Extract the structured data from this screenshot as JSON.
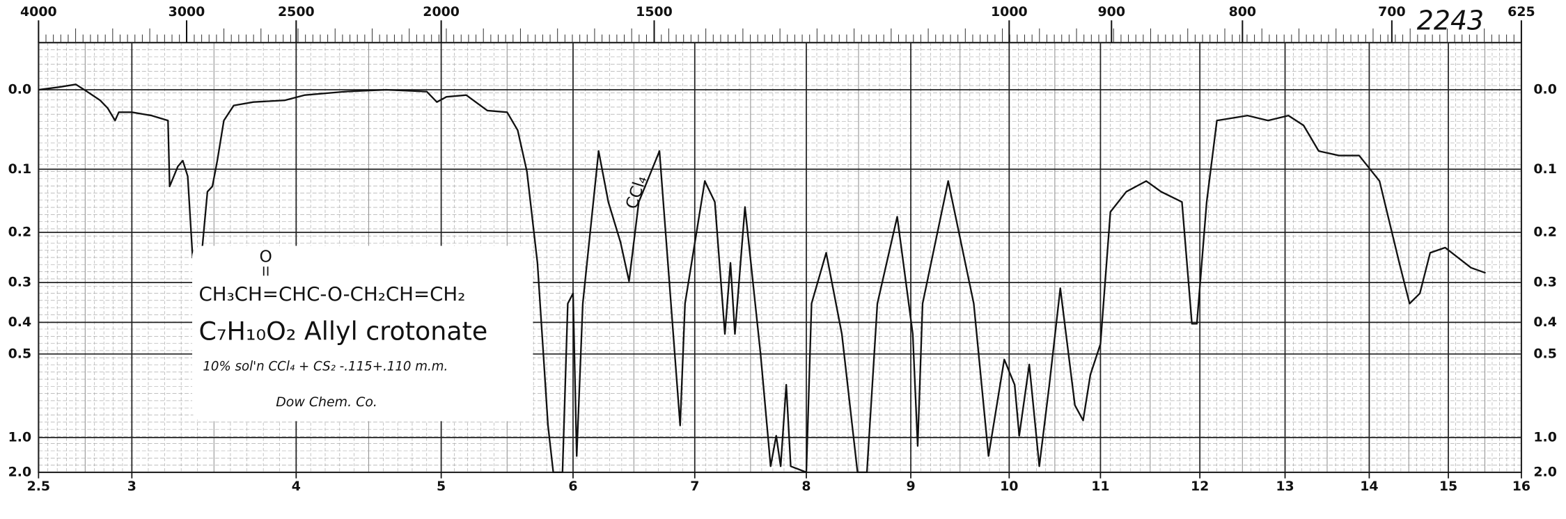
{
  "chart_data": {
    "type": "line",
    "color": "#111111",
    "grid": true,
    "yscale": "transmittance",
    "xlim": [
      2.5,
      16
    ],
    "xticks": [
      2.5,
      3,
      4,
      5,
      6,
      7,
      8,
      9,
      10,
      11,
      12,
      13,
      14,
      15,
      16
    ],
    "x2lim": [
      4000,
      625
    ],
    "x2ticks": [
      4000,
      3000,
      2500,
      2000,
      1500,
      1000,
      900,
      800,
      700,
      625
    ],
    "ylim": [
      -0.05,
      2
    ],
    "yticks": [
      {
        "value": 0,
        "label": "0.0"
      },
      0.1,
      0.2,
      0.3,
      0.4,
      0.5,
      {
        "value": 1,
        "label": "1.0"
      },
      {
        "value": 2,
        "label": "2.0"
      }
    ],
    "annotations": [
      "2243",
      "O",
      "CH₃CH=CHC-O-CH₂CH=CH₂",
      "C₇H₁₀O₂  Allyl crotonate",
      "10% sol'n CCl₄ + CS₂ -.115+.110 m.m.",
      "Dow Chem. Co.",
      "CCl₄"
    ],
    "x": [
      2.5,
      2.61,
      2.7,
      2.76,
      2.83,
      2.87,
      2.91,
      2.93,
      3.0,
      3.12,
      3.22,
      3.23,
      3.28,
      3.31,
      3.34,
      3.37,
      3.42,
      3.46,
      3.49,
      3.52,
      3.56,
      3.62,
      3.74,
      3.93,
      4.06,
      4.34,
      4.62,
      4.9,
      4.97,
      5.04,
      5.19,
      5.35,
      5.5,
      5.58,
      5.65,
      5.73,
      5.81,
      5.85,
      5.92,
      5.96,
      6.0,
      6.03,
      6.08,
      6.21,
      6.29,
      6.39,
      6.46,
      6.54,
      6.71,
      6.88,
      6.92,
      7.09,
      7.18,
      7.27,
      7.32,
      7.36,
      7.45,
      7.59,
      7.68,
      7.73,
      7.77,
      7.82,
      7.86,
      8.0,
      8.05,
      8.19,
      8.34,
      8.49,
      8.58,
      8.68,
      8.87,
      9.02,
      9.07,
      9.12,
      9.38,
      9.64,
      9.79,
      9.95,
      10.06,
      10.11,
      10.22,
      10.33,
      10.44,
      10.56,
      10.72,
      10.81,
      10.89,
      11.0,
      11.1,
      11.26,
      11.46,
      11.61,
      11.82,
      11.92,
      11.97,
      12.08,
      12.2,
      12.56,
      12.8,
      13.04,
      13.22,
      13.4,
      13.64,
      13.88,
      14.13,
      14.38,
      14.51,
      14.64,
      14.77,
      14.96,
      15.31,
      15.51
    ],
    "values": [
      0,
      -0.003,
      -0.006,
      0.002,
      0.012,
      0.021,
      0.036,
      0.026,
      0.026,
      0.03,
      0.036,
      0.125,
      0.096,
      0.088,
      0.11,
      0.248,
      0.258,
      0.133,
      0.125,
      0.088,
      0.036,
      0.018,
      0.014,
      0.012,
      0.006,
      0.002,
      0,
      0.002,
      0.014,
      0.008,
      0.006,
      0.024,
      0.026,
      0.048,
      0.103,
      0.258,
      0.882,
      2.0,
      2.0,
      0.35,
      0.325,
      1.283,
      0.35,
      0.075,
      0.149,
      0.218,
      0.297,
      0.149,
      0.075,
      0.882,
      0.35,
      0.117,
      0.149,
      0.434,
      0.258,
      0.434,
      0.157,
      0.501,
      1.59,
      0.98,
      1.59,
      0.626,
      1.59,
      2.0,
      0.35,
      0.238,
      0.434,
      2.0,
      2.0,
      0.35,
      0.173,
      0.434,
      1.106,
      0.35,
      0.117,
      0.35,
      1.283,
      0.52,
      0.626,
      0.98,
      0.539,
      1.59,
      0.626,
      0.313,
      0.736,
      0.841,
      0.58,
      0.466,
      0.165,
      0.133,
      0.117,
      0.133,
      0.149,
      0.404,
      0.404,
      0.149,
      0.036,
      0.03,
      0.036,
      0.03,
      0.042,
      0.075,
      0.081,
      0.081,
      0.117,
      0.258,
      0.35,
      0.325,
      0.238,
      0.228,
      0.268,
      0.279
    ]
  }
}
